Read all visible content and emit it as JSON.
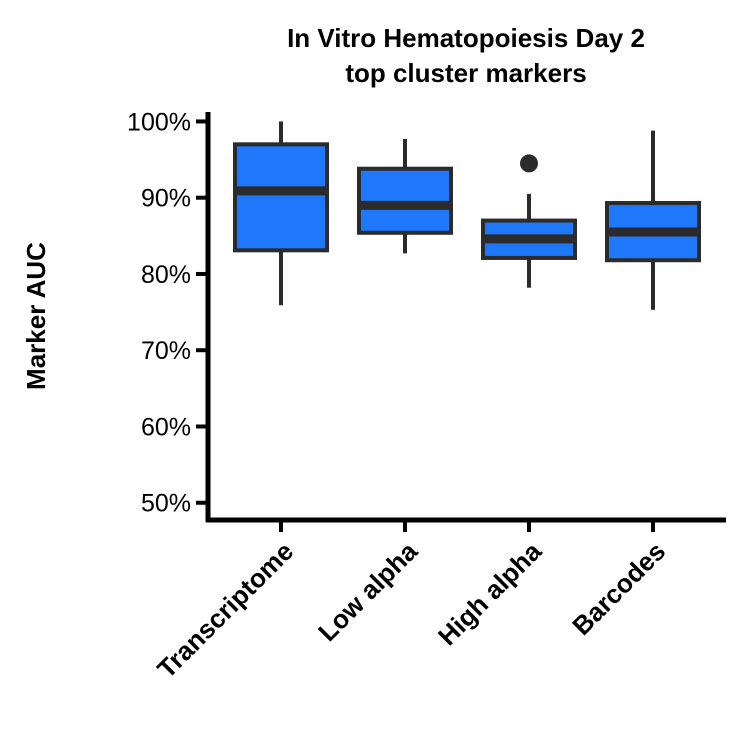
{
  "chart_data": {
    "type": "boxplot",
    "title": "In Vitro Hematopoiesis Day 2",
    "subtitle": "top cluster markers",
    "xlabel": "",
    "ylabel": "Marker AUC",
    "ylim": [
      48,
      101.5
    ],
    "yticks": [
      50,
      60,
      70,
      80,
      90,
      100
    ],
    "ytick_labels": [
      "50%",
      "60%",
      "70%",
      "80%",
      "90%",
      "100%"
    ],
    "categories": [
      "Transcriptome",
      "Low alpha",
      "High alpha",
      "Barcodes"
    ],
    "boxes": [
      {
        "category": "Transcriptome",
        "whisker_low": 75.9,
        "q1": 83.1,
        "median": 90.9,
        "q3": 97.0,
        "whisker_high": 100.0,
        "outliers": []
      },
      {
        "category": "Low alpha",
        "whisker_low": 82.7,
        "q1": 85.4,
        "median": 89.0,
        "q3": 93.8,
        "whisker_high": 97.7,
        "outliers": []
      },
      {
        "category": "High alpha",
        "whisker_low": 78.2,
        "q1": 82.1,
        "median": 84.6,
        "q3": 87.0,
        "whisker_high": 90.5,
        "outliers": [
          94.5
        ]
      },
      {
        "category": "Barcodes",
        "whisker_low": 75.3,
        "q1": 81.8,
        "median": 85.5,
        "q3": 89.3,
        "whisker_high": 98.8,
        "outliers": []
      }
    ],
    "colors": {
      "box_fill": "#1f77fa",
      "box_stroke": "#2b2b2b",
      "axis": "#000000"
    },
    "grid": false,
    "legend": "none"
  }
}
